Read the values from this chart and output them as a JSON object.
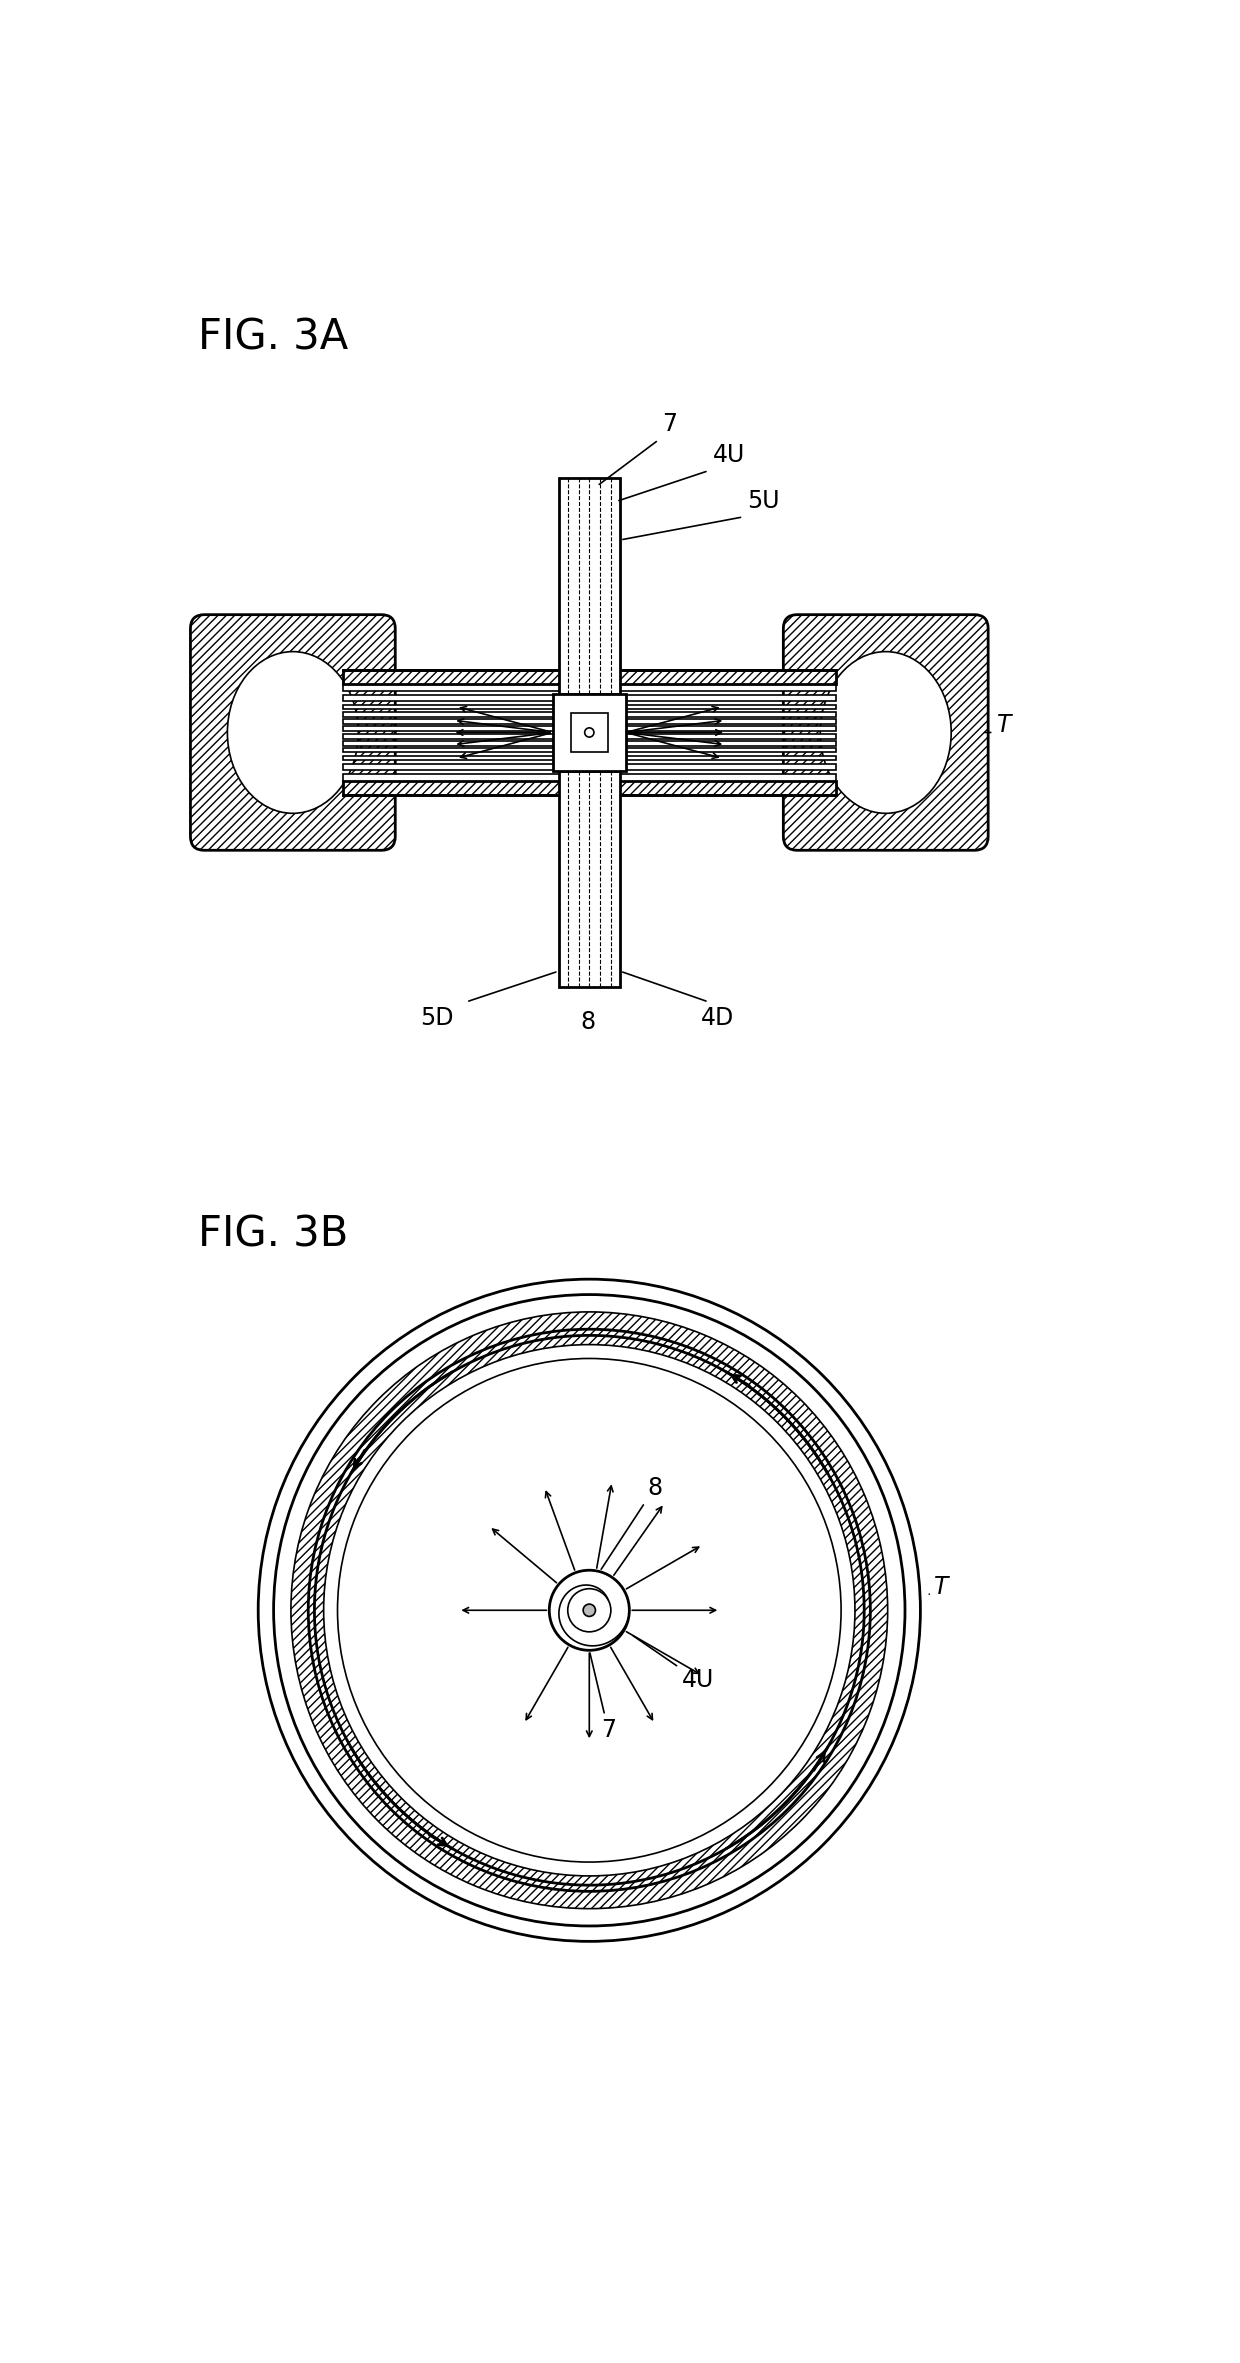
{
  "fig_label_3A": "FIG. 3A",
  "fig_label_3B": "FIG. 3B",
  "label_7": "7",
  "label_4U": "4U",
  "label_5U": "5U",
  "label_8": "8",
  "label_5D": "5D",
  "label_4D": "4D",
  "label_T_3A": "T",
  "label_T_3B": "T",
  "bg_color": "#ffffff",
  "line_color": "#000000"
}
